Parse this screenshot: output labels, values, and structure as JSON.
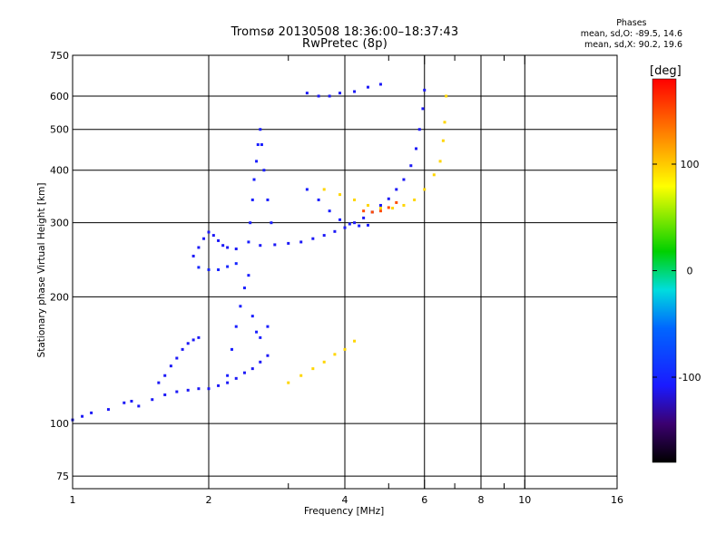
{
  "header": {
    "title_line1": "Tromsø 20130508 18:36:00–18:37:43",
    "title_line2": "RwPretec (8p)"
  },
  "phases_box": {
    "heading": "Phases",
    "line1": "mean, sd,O: -89.5, 14.6",
    "line2": "mean, sd,X:  90.2, 19.6"
  },
  "colorbar": {
    "unit": "[deg]",
    "ticks": [
      {
        "value": 100,
        "label": "100"
      },
      {
        "value": 0,
        "label": "0"
      },
      {
        "value": -100,
        "label": "-100"
      }
    ],
    "range": [
      -180,
      180
    ]
  },
  "chart_data": {
    "type": "scatter",
    "xlabel": "Frequency [MHz]",
    "ylabel": "Stationary phase Virtual Height [km]",
    "x_scale": "log",
    "y_scale": "log",
    "xlim": [
      1,
      16
    ],
    "ylim": [
      70,
      750
    ],
    "x_ticks": [
      {
        "value": 1,
        "label": "1",
        "major": true
      },
      {
        "value": 2,
        "label": "2",
        "major": true
      },
      {
        "value": 3,
        "label": "",
        "major": false
      },
      {
        "value": 4,
        "label": "4",
        "major": true
      },
      {
        "value": 5,
        "label": "",
        "major": false
      },
      {
        "value": 6,
        "label": "6",
        "major": true
      },
      {
        "value": 7,
        "label": "",
        "major": false
      },
      {
        "value": 8,
        "label": "8",
        "major": true
      },
      {
        "value": 9,
        "label": "",
        "major": false
      },
      {
        "value": 10,
        "label": "10",
        "major": true
      },
      {
        "value": 16,
        "label": "16",
        "major": true
      }
    ],
    "y_ticks": [
      {
        "value": 75,
        "label": "75"
      },
      {
        "value": 100,
        "label": "100"
      },
      {
        "value": 200,
        "label": "200"
      },
      {
        "value": 300,
        "label": "300"
      },
      {
        "value": 400,
        "label": "400"
      },
      {
        "value": 500,
        "label": "500"
      },
      {
        "value": 600,
        "label": "600"
      },
      {
        "value": 750,
        "label": "750"
      }
    ],
    "grid": true,
    "traces": [
      {
        "name": "",
        "phase": -110,
        "points": [
          [
            1.0,
            102
          ],
          [
            1.05,
            104
          ],
          [
            1.1,
            106
          ],
          [
            1.2,
            108
          ],
          [
            1.3,
            112
          ],
          [
            1.35,
            113
          ],
          [
            1.4,
            110
          ],
          [
            1.5,
            114
          ],
          [
            1.6,
            117
          ],
          [
            1.7,
            119
          ],
          [
            1.8,
            120
          ],
          [
            1.9,
            121
          ],
          [
            2.0,
            121
          ],
          [
            2.1,
            123
          ],
          [
            2.2,
            125
          ],
          [
            2.3,
            128
          ],
          [
            2.4,
            132
          ],
          [
            2.5,
            135
          ],
          [
            2.6,
            140
          ],
          [
            2.7,
            145
          ]
        ]
      },
      {
        "name": "",
        "phase": -110,
        "points": [
          [
            1.55,
            125
          ],
          [
            1.6,
            130
          ],
          [
            1.65,
            137
          ],
          [
            1.7,
            143
          ],
          [
            1.75,
            150
          ],
          [
            1.8,
            155
          ],
          [
            1.85,
            158
          ],
          [
            1.9,
            160
          ]
        ]
      },
      {
        "name": "",
        "phase": -105,
        "points": [
          [
            2.2,
            130
          ],
          [
            2.25,
            150
          ],
          [
            2.3,
            170
          ],
          [
            2.35,
            190
          ],
          [
            2.4,
            210
          ],
          [
            2.45,
            225
          ],
          [
            2.5,
            180
          ],
          [
            2.55,
            165
          ],
          [
            2.6,
            160
          ],
          [
            2.7,
            170
          ]
        ]
      },
      {
        "name": "",
        "phase": -110,
        "points": [
          [
            1.85,
            250
          ],
          [
            1.9,
            262
          ],
          [
            1.95,
            275
          ],
          [
            2.0,
            285
          ],
          [
            2.05,
            280
          ],
          [
            2.1,
            272
          ],
          [
            2.15,
            265
          ],
          [
            2.2,
            262
          ],
          [
            2.3,
            260
          ]
        ]
      },
      {
        "name": "",
        "phase": -100,
        "points": [
          [
            1.9,
            235
          ],
          [
            2.0,
            232
          ],
          [
            2.1,
            232
          ],
          [
            2.2,
            236
          ],
          [
            2.3,
            240
          ]
        ]
      },
      {
        "name": "",
        "phase": -105,
        "points": [
          [
            2.45,
            270
          ],
          [
            2.47,
            300
          ],
          [
            2.5,
            340
          ],
          [
            2.52,
            380
          ],
          [
            2.55,
            420
          ],
          [
            2.57,
            460
          ],
          [
            2.6,
            500
          ],
          [
            2.62,
            460
          ],
          [
            2.65,
            400
          ],
          [
            2.7,
            340
          ],
          [
            2.75,
            300
          ]
        ]
      },
      {
        "name": "",
        "phase": -110,
        "points": [
          [
            2.6,
            265
          ],
          [
            2.8,
            266
          ],
          [
            3.0,
            268
          ],
          [
            3.2,
            270
          ],
          [
            3.4,
            275
          ],
          [
            3.6,
            280
          ],
          [
            3.8,
            286
          ],
          [
            4.0,
            292
          ],
          [
            4.2,
            300
          ],
          [
            4.4,
            308
          ],
          [
            4.6,
            318
          ],
          [
            4.8,
            330
          ],
          [
            5.0,
            342
          ],
          [
            5.2,
            360
          ],
          [
            5.4,
            380
          ],
          [
            5.6,
            410
          ],
          [
            5.75,
            450
          ],
          [
            5.85,
            500
          ],
          [
            5.95,
            560
          ],
          [
            6.0,
            620
          ]
        ]
      },
      {
        "name": "",
        "phase": -110,
        "points": [
          [
            3.3,
            610
          ],
          [
            3.5,
            600
          ],
          [
            3.7,
            600
          ],
          [
            3.9,
            610
          ],
          [
            4.2,
            615
          ],
          [
            4.5,
            630
          ],
          [
            4.8,
            640
          ]
        ]
      },
      {
        "name": "",
        "phase": -105,
        "points": [
          [
            3.3,
            360
          ],
          [
            3.5,
            340
          ],
          [
            3.7,
            320
          ],
          [
            3.9,
            305
          ],
          [
            4.1,
            298
          ],
          [
            4.3,
            295
          ],
          [
            4.5,
            296
          ]
        ]
      },
      {
        "name": "",
        "phase": 95,
        "points": [
          [
            3.0,
            125
          ],
          [
            3.2,
            130
          ],
          [
            3.4,
            135
          ],
          [
            3.6,
            140
          ],
          [
            3.8,
            146
          ],
          [
            4.0,
            150
          ],
          [
            4.2,
            157
          ]
        ]
      },
      {
        "name": "",
        "phase": 95,
        "points": [
          [
            3.6,
            360
          ],
          [
            3.9,
            350
          ],
          [
            4.2,
            340
          ],
          [
            4.5,
            330
          ],
          [
            4.8,
            325
          ],
          [
            5.1,
            325
          ],
          [
            5.4,
            330
          ],
          [
            5.7,
            340
          ],
          [
            6.0,
            360
          ],
          [
            6.3,
            390
          ],
          [
            6.5,
            420
          ],
          [
            6.6,
            470
          ],
          [
            6.65,
            520
          ],
          [
            6.7,
            600
          ]
        ]
      },
      {
        "name": "",
        "phase": 150,
        "points": [
          [
            4.4,
            320
          ],
          [
            4.6,
            318
          ],
          [
            4.8,
            320
          ],
          [
            5.0,
            326
          ],
          [
            5.2,
            335
          ]
        ]
      }
    ]
  }
}
